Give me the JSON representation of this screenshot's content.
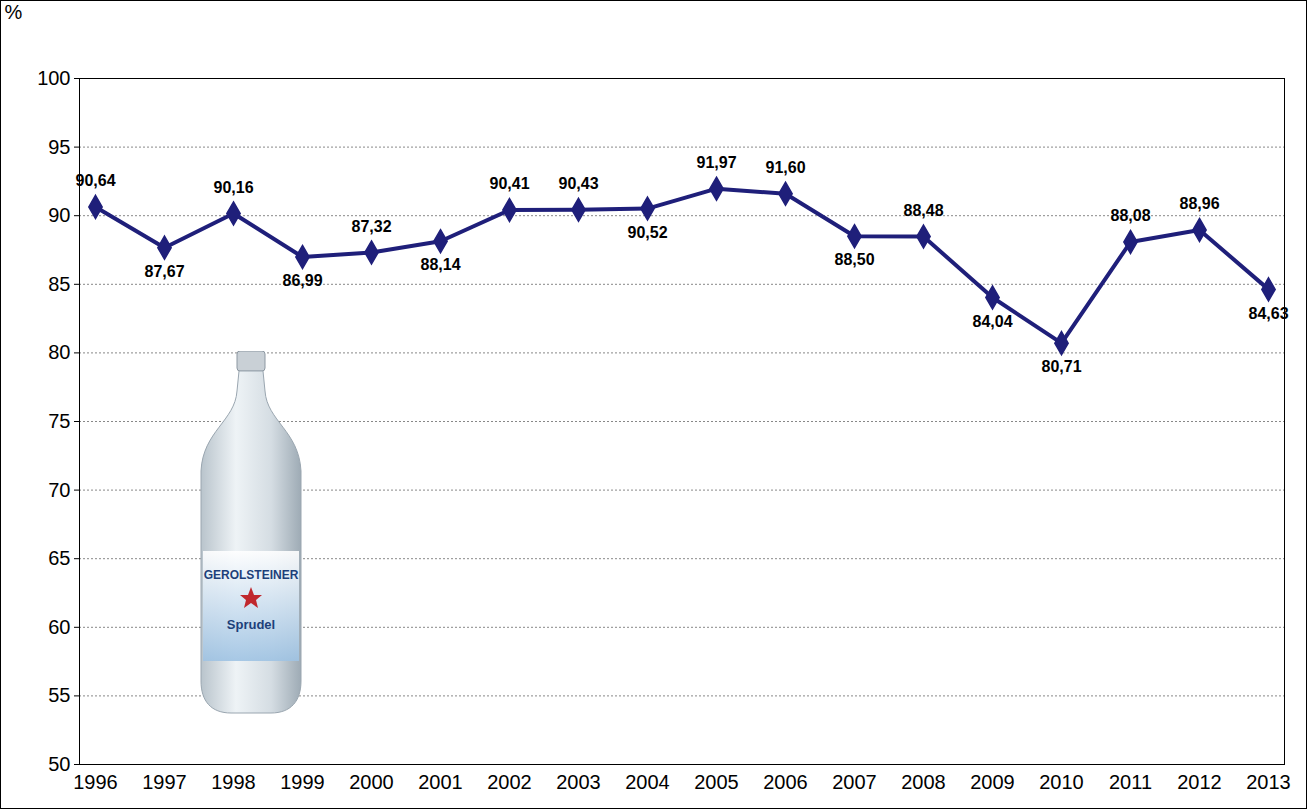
{
  "chart_data": {
    "type": "line",
    "y_label": "%",
    "categories": [
      "1996",
      "1997",
      "1998",
      "1999",
      "2000",
      "2001",
      "2002",
      "2003",
      "2004",
      "2005",
      "2006",
      "2007",
      "2008",
      "2009",
      "2010",
      "2011",
      "2012",
      "2013"
    ],
    "values": [
      90.64,
      87.67,
      90.16,
      86.99,
      87.32,
      88.14,
      90.41,
      90.43,
      90.52,
      91.97,
      91.6,
      88.5,
      88.48,
      84.04,
      80.71,
      88.08,
      88.96,
      84.63
    ],
    "value_labels": [
      "90,64",
      "87,67",
      "90,16",
      "86,99",
      "87,32",
      "88,14",
      "90,41",
      "90,43",
      "90,52",
      "91,97",
      "91,60",
      "88,50",
      "88,48",
      "84,04",
      "80,71",
      "88,08",
      "88,96",
      "84,63"
    ],
    "color": "#1F1F7A",
    "marker": "diamond",
    "line_style": "solid",
    "data_labels": true,
    "ylim": [
      50,
      100
    ],
    "yticks": [
      50,
      55,
      60,
      65,
      70,
      75,
      80,
      85,
      90,
      95,
      100
    ],
    "grid": true,
    "annotations": [
      "GEROLSTEINER",
      "Sprudel"
    ]
  }
}
